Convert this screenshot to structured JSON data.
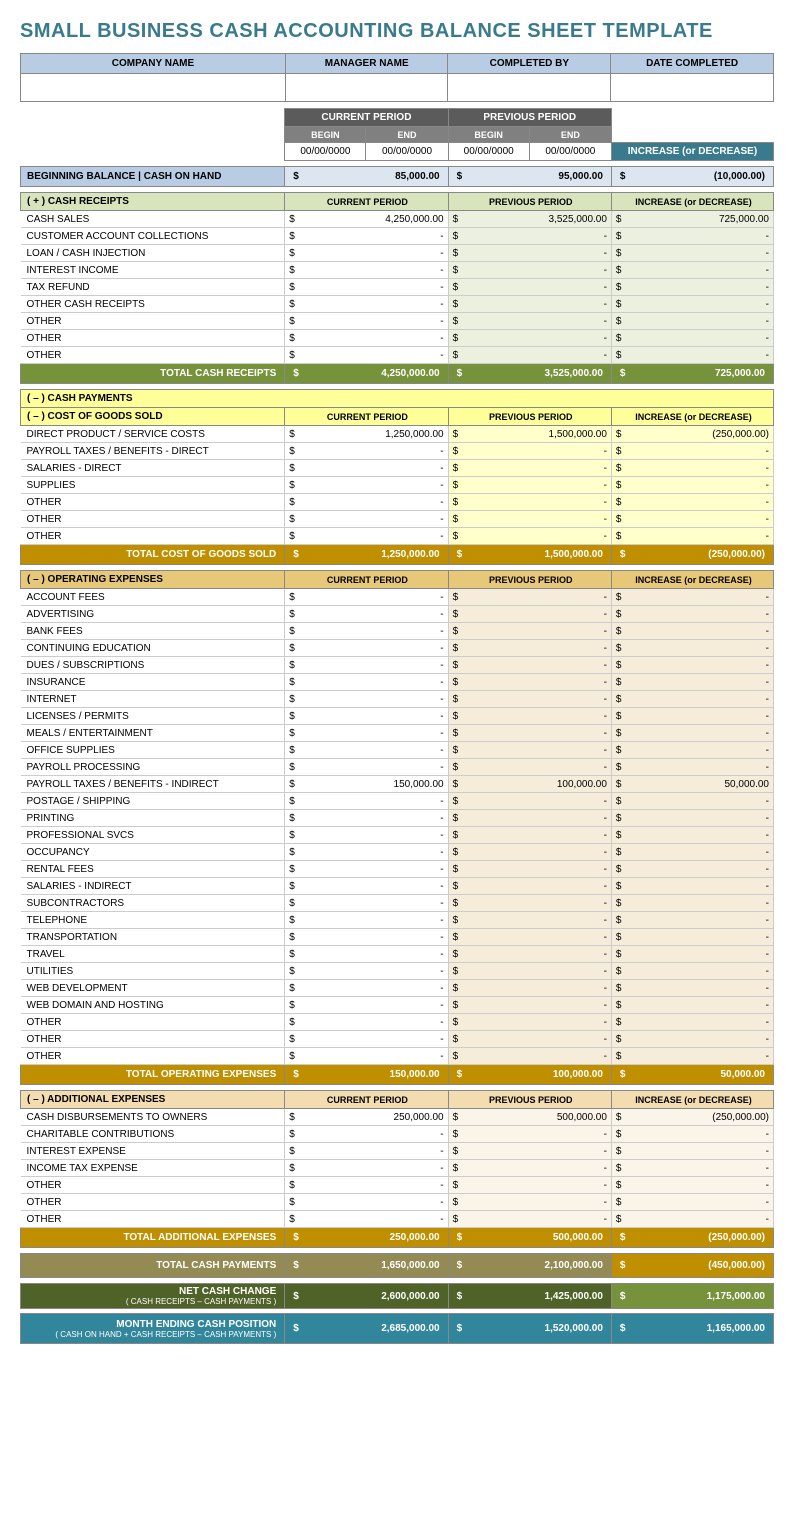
{
  "title": "SMALL BUSINESS CASH ACCOUNTING BALANCE SHEET TEMPLATE",
  "topHeaders": {
    "company": "COMPANY NAME",
    "manager": "MANAGER NAME",
    "completed_by": "COMPLETED BY",
    "date_completed": "DATE COMPLETED"
  },
  "periodLabels": {
    "current": "CURRENT PERIOD",
    "previous": "PREVIOUS PERIOD",
    "begin": "BEGIN",
    "end": "END",
    "inc_dec": "INCREASE (or DECREASE)",
    "date_placeholder": "00/00/0000"
  },
  "beginning_balance": {
    "label": "BEGINNING BALANCE  |  CASH ON HAND",
    "current": "85,000.00",
    "previous": "95,000.00",
    "change": "(10,000.00)"
  },
  "receipts": {
    "header": "( + )  CASH RECEIPTS",
    "rows": [
      {
        "label": "CASH SALES",
        "current": "4,250,000.00",
        "previous": "3,525,000.00",
        "change": "725,000.00"
      },
      {
        "label": "CUSTOMER ACCOUNT COLLECTIONS",
        "current": "-",
        "previous": "-",
        "change": "-"
      },
      {
        "label": "LOAN / CASH INJECTION",
        "current": "-",
        "previous": "-",
        "change": "-"
      },
      {
        "label": "INTEREST INCOME",
        "current": "-",
        "previous": "-",
        "change": "-"
      },
      {
        "label": "TAX REFUND",
        "current": "-",
        "previous": "-",
        "change": "-"
      },
      {
        "label": "OTHER CASH RECEIPTS",
        "current": "-",
        "previous": "-",
        "change": "-"
      },
      {
        "label": "OTHER",
        "current": "-",
        "previous": "-",
        "change": "-"
      },
      {
        "label": "OTHER",
        "current": "-",
        "previous": "-",
        "change": "-"
      },
      {
        "label": "OTHER",
        "current": "-",
        "previous": "-",
        "change": "-"
      }
    ],
    "total": {
      "label": "TOTAL CASH RECEIPTS",
      "current": "4,250,000.00",
      "previous": "3,525,000.00",
      "change": "725,000.00"
    }
  },
  "payments_header": "( – )  CASH PAYMENTS",
  "cogs": {
    "header": "( – )  COST OF GOODS SOLD",
    "rows": [
      {
        "label": "DIRECT PRODUCT / SERVICE COSTS",
        "current": "1,250,000.00",
        "previous": "1,500,000.00",
        "change": "(250,000.00)"
      },
      {
        "label": "PAYROLL TAXES / BENEFITS - DIRECT",
        "current": "-",
        "previous": "-",
        "change": "-"
      },
      {
        "label": "SALARIES - DIRECT",
        "current": "-",
        "previous": "-",
        "change": "-"
      },
      {
        "label": "SUPPLIES",
        "current": "-",
        "previous": "-",
        "change": "-"
      },
      {
        "label": "OTHER",
        "current": "-",
        "previous": "-",
        "change": "-"
      },
      {
        "label": "OTHER",
        "current": "-",
        "previous": "-",
        "change": "-"
      },
      {
        "label": "OTHER",
        "current": "-",
        "previous": "-",
        "change": "-"
      }
    ],
    "total": {
      "label": "TOTAL COST OF GOODS SOLD",
      "current": "1,250,000.00",
      "previous": "1,500,000.00",
      "change": "(250,000.00)"
    }
  },
  "opex": {
    "header": "( – )  OPERATING EXPENSES",
    "rows": [
      {
        "label": "ACCOUNT FEES",
        "current": "-",
        "previous": "-",
        "change": "-"
      },
      {
        "label": "ADVERTISING",
        "current": "-",
        "previous": "-",
        "change": "-"
      },
      {
        "label": "BANK FEES",
        "current": "-",
        "previous": "-",
        "change": "-"
      },
      {
        "label": "CONTINUING EDUCATION",
        "current": "-",
        "previous": "-",
        "change": "-"
      },
      {
        "label": "DUES / SUBSCRIPTIONS",
        "current": "-",
        "previous": "-",
        "change": "-"
      },
      {
        "label": "INSURANCE",
        "current": "-",
        "previous": "-",
        "change": "-"
      },
      {
        "label": "INTERNET",
        "current": "-",
        "previous": "-",
        "change": "-"
      },
      {
        "label": "LICENSES / PERMITS",
        "current": "-",
        "previous": "-",
        "change": "-"
      },
      {
        "label": "MEALS / ENTERTAINMENT",
        "current": "-",
        "previous": "-",
        "change": "-"
      },
      {
        "label": "OFFICE SUPPLIES",
        "current": "-",
        "previous": "-",
        "change": "-"
      },
      {
        "label": "PAYROLL PROCESSING",
        "current": "-",
        "previous": "-",
        "change": "-"
      },
      {
        "label": "PAYROLL TAXES / BENEFITS - INDIRECT",
        "current": "150,000.00",
        "previous": "100,000.00",
        "change": "50,000.00"
      },
      {
        "label": "POSTAGE / SHIPPING",
        "current": "-",
        "previous": "-",
        "change": "-"
      },
      {
        "label": "PRINTING",
        "current": "-",
        "previous": "-",
        "change": "-"
      },
      {
        "label": "PROFESSIONAL SVCS",
        "current": "-",
        "previous": "-",
        "change": "-"
      },
      {
        "label": "OCCUPANCY",
        "current": "-",
        "previous": "-",
        "change": "-"
      },
      {
        "label": "RENTAL FEES",
        "current": "-",
        "previous": "-",
        "change": "-"
      },
      {
        "label": "SALARIES - INDIRECT",
        "current": "-",
        "previous": "-",
        "change": "-"
      },
      {
        "label": "SUBCONTRACTORS",
        "current": "-",
        "previous": "-",
        "change": "-"
      },
      {
        "label": "TELEPHONE",
        "current": "-",
        "previous": "-",
        "change": "-"
      },
      {
        "label": "TRANSPORTATION",
        "current": "-",
        "previous": "-",
        "change": "-"
      },
      {
        "label": "TRAVEL",
        "current": "-",
        "previous": "-",
        "change": "-"
      },
      {
        "label": "UTILITIES",
        "current": "-",
        "previous": "-",
        "change": "-"
      },
      {
        "label": "WEB DEVELOPMENT",
        "current": "-",
        "previous": "-",
        "change": "-"
      },
      {
        "label": "WEB DOMAIN AND HOSTING",
        "current": "-",
        "previous": "-",
        "change": "-"
      },
      {
        "label": "OTHER",
        "current": "-",
        "previous": "-",
        "change": "-"
      },
      {
        "label": "OTHER",
        "current": "-",
        "previous": "-",
        "change": "-"
      },
      {
        "label": "OTHER",
        "current": "-",
        "previous": "-",
        "change": "-"
      }
    ],
    "total": {
      "label": "TOTAL OPERATING EXPENSES",
      "current": "150,000.00",
      "previous": "100,000.00",
      "change": "50,000.00"
    }
  },
  "addl": {
    "header": "( – )  ADDITIONAL EXPENSES",
    "rows": [
      {
        "label": "CASH DISBURSEMENTS TO OWNERS",
        "current": "250,000.00",
        "previous": "500,000.00",
        "change": "(250,000.00)"
      },
      {
        "label": "CHARITABLE CONTRIBUTIONS",
        "current": "-",
        "previous": "-",
        "change": "-"
      },
      {
        "label": "INTEREST EXPENSE",
        "current": "-",
        "previous": "-",
        "change": "-"
      },
      {
        "label": "INCOME TAX EXPENSE",
        "current": "-",
        "previous": "-",
        "change": "-"
      },
      {
        "label": "OTHER",
        "current": "-",
        "previous": "-",
        "change": "-"
      },
      {
        "label": "OTHER",
        "current": "-",
        "previous": "-",
        "change": "-"
      },
      {
        "label": "OTHER",
        "current": "-",
        "previous": "-",
        "change": "-"
      }
    ],
    "total": {
      "label": "TOTAL ADDITIONAL EXPENSES",
      "current": "250,000.00",
      "previous": "500,000.00",
      "change": "(250,000.00)"
    }
  },
  "summary": {
    "total_payments": {
      "label": "TOTAL CASH PAYMENTS",
      "current": "1,650,000.00",
      "previous": "2,100,000.00",
      "change": "(450,000.00)"
    },
    "net_change": {
      "label": "NET CASH CHANGE",
      "sub": "( CASH RECEIPTS – CASH PAYMENTS )",
      "current": "2,600,000.00",
      "previous": "1,425,000.00",
      "change": "1,175,000.00"
    },
    "ending": {
      "label": "MONTH ENDING CASH POSITION",
      "sub": "( CASH ON HAND + CASH RECEIPTS – CASH PAYMENTS )",
      "current": "2,685,000.00",
      "previous": "1,520,000.00",
      "change": "1,165,000.00"
    }
  },
  "dollar": "$"
}
